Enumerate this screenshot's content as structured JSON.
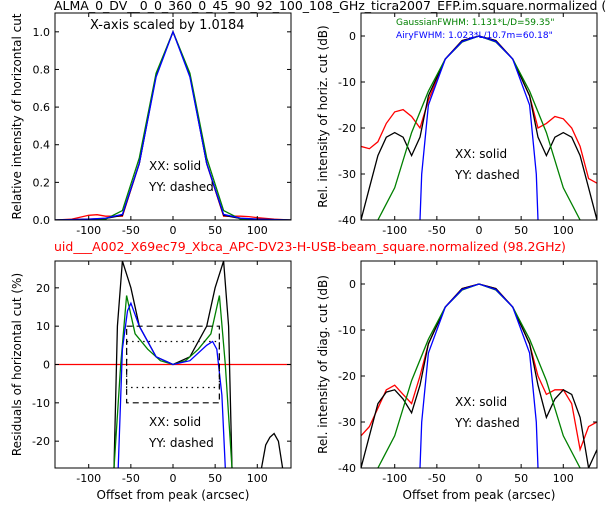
{
  "page": {
    "title_top": "ALMA_0_DV__0_0_360_0_45_90_92_100_108_GHz_ticra2007_EFP.im.square.normalized (",
    "title_mid": "uid___A002_X69ec79_Xbca_APC-DV23-H-USB-beam_square.normalized (98.2GHz)"
  },
  "colors": {
    "measured": "#ff0000",
    "model": "#000000",
    "gaussian": "#008000",
    "airy": "#0000ff"
  },
  "chart_data": [
    {
      "id": "p1",
      "type": "line",
      "ylabel": "Relative intensity of horizontal cut",
      "xlabel": "",
      "xlim": [
        -140,
        140
      ],
      "ylim": [
        0,
        1.1
      ],
      "xticks": [
        "-100",
        "-50",
        "0",
        "50",
        "100"
      ],
      "yticks": [
        "0.0",
        "0.2",
        "0.4",
        "0.6",
        "0.8",
        "1.0"
      ],
      "annotation": "X-axis scaled by 1.0184",
      "notes": [
        "XX: solid",
        "YY: dashed"
      ],
      "series": [
        {
          "color": "red",
          "style": "solid",
          "x": [
            -140,
            -120,
            -100,
            -90,
            -80,
            -60,
            -40,
            -20,
            0,
            20,
            40,
            60,
            80,
            90,
            100,
            120,
            140
          ],
          "y": [
            0,
            0.005,
            0.025,
            0.028,
            0.02,
            0.02,
            0.3,
            0.77,
            1.0,
            0.77,
            0.3,
            0.02,
            0.02,
            0.018,
            0.012,
            0.004,
            0
          ]
        },
        {
          "color": "black",
          "style": "solid",
          "x": [
            -140,
            -100,
            -80,
            -60,
            -40,
            -20,
            0,
            20,
            40,
            60,
            80,
            100,
            140
          ],
          "y": [
            0,
            0.005,
            0.008,
            0.025,
            0.3,
            0.77,
            1.0,
            0.77,
            0.3,
            0.025,
            0.008,
            0.005,
            0
          ]
        },
        {
          "color": "green",
          "style": "solid",
          "x": [
            -140,
            -100,
            -80,
            -60,
            -40,
            -20,
            0,
            20,
            40,
            60,
            80,
            100,
            140
          ],
          "y": [
            0,
            0.001,
            0.005,
            0.05,
            0.33,
            0.78,
            1.0,
            0.78,
            0.33,
            0.05,
            0.005,
            0.001,
            0
          ]
        },
        {
          "color": "blue",
          "style": "solid",
          "x": [
            -140,
            -100,
            -80,
            -60,
            -40,
            -20,
            0,
            20,
            40,
            60,
            80,
            100,
            140
          ],
          "y": [
            0,
            0.005,
            0.01,
            0.03,
            0.3,
            0.76,
            1.0,
            0.76,
            0.3,
            0.03,
            0.01,
            0.005,
            0
          ]
        }
      ]
    },
    {
      "id": "p2",
      "type": "line",
      "ylabel": "Rel. intensity of horiz. cut (dB)",
      "xlabel": "",
      "xlim": [
        -140,
        140
      ],
      "ylim": [
        -40,
        5
      ],
      "xticks": [
        "-100",
        "-50",
        "0",
        "50",
        "100"
      ],
      "yticks": [
        "-40",
        "-30",
        "-20",
        "-10",
        "0"
      ],
      "legend": [
        {
          "text": "GaussianFWHM: 1.131*L/D=59.35\"",
          "color": "green"
        },
        {
          "text": "AiryFWHM: 1.023*L/10.7m=60.18\"",
          "color": "blue"
        }
      ],
      "notes": [
        "XX: solid",
        "YY: dashed"
      ],
      "series": [
        {
          "color": "red",
          "style": "solid",
          "x": [
            -140,
            -130,
            -120,
            -110,
            -100,
            -90,
            -80,
            -70,
            -60,
            -40,
            -20,
            0,
            20,
            40,
            60,
            70,
            80,
            90,
            100,
            110,
            120,
            130,
            140
          ],
          "y": [
            -24,
            -24.5,
            -23,
            -19,
            -16.5,
            -16,
            -17.5,
            -20,
            -14,
            -5,
            -1,
            0,
            -1,
            -5,
            -13,
            -20,
            -19,
            -17.5,
            -18,
            -20,
            -24,
            -31,
            -32
          ]
        },
        {
          "color": "black",
          "style": "solid",
          "x": [
            -140,
            -130,
            -120,
            -110,
            -100,
            -90,
            -80,
            -70,
            -60,
            -40,
            -20,
            0,
            20,
            40,
            60,
            70,
            80,
            90,
            100,
            110,
            120,
            130,
            140
          ],
          "y": [
            -40,
            -33,
            -26,
            -22,
            -21,
            -22,
            -26,
            -22,
            -13,
            -5,
            -1,
            0,
            -1,
            -5,
            -13,
            -22,
            -26,
            -22,
            -21,
            -22,
            -26,
            -33,
            -40
          ]
        },
        {
          "color": "green",
          "style": "solid",
          "x": [
            -120,
            -100,
            -80,
            -60,
            -40,
            -20,
            0,
            20,
            40,
            60,
            80,
            100,
            120
          ],
          "y": [
            -40,
            -33,
            -21,
            -12,
            -5,
            -1.3,
            0,
            -1.3,
            -5,
            -12,
            -21,
            -33,
            -40
          ]
        },
        {
          "color": "blue",
          "style": "solid",
          "x": [
            -70,
            -68,
            -60,
            -40,
            -20,
            0,
            20,
            40,
            60,
            68,
            70
          ],
          "y": [
            -40,
            -30,
            -15,
            -5,
            -1.2,
            0,
            -1.2,
            -5,
            -15,
            -30,
            -40
          ]
        }
      ]
    },
    {
      "id": "p3",
      "type": "line",
      "ylabel": "Residuals of horizontal cut (%)",
      "xlabel": "Offset from peak (arcsec)",
      "xlim": [
        -140,
        140
      ],
      "ylim": [
        -27,
        27
      ],
      "xticks": [
        "-100",
        "-50",
        "0",
        "50",
        "100"
      ],
      "yticks": [
        "-20",
        "-10",
        "0",
        "10",
        "20"
      ],
      "notes": [
        "XX: solid",
        "YY: dashed"
      ],
      "series": [
        {
          "color": "red",
          "style": "solid",
          "x": [
            -140,
            140
          ],
          "y": [
            0,
            0
          ]
        },
        {
          "color": "black",
          "style": "solid",
          "x": [
            -70,
            -66,
            -60,
            -50,
            -40,
            -20,
            0,
            20,
            40,
            50,
            60,
            66,
            70
          ],
          "y": [
            -27,
            10,
            27,
            20,
            10,
            2,
            0,
            2,
            10,
            20,
            27,
            10,
            -27
          ]
        },
        {
          "color": "black",
          "style": "solid",
          "x": [
            105,
            110,
            115,
            120,
            125,
            130
          ],
          "y": [
            -27,
            -21,
            -19,
            -18,
            -20,
            -27
          ]
        },
        {
          "color": "green",
          "style": "solid",
          "x": [
            -70,
            -62,
            -55,
            -45,
            -30,
            -15,
            0,
            15,
            30,
            45,
            55,
            62,
            70
          ],
          "y": [
            -27,
            0,
            18,
            8,
            4,
            1,
            0,
            1,
            4,
            8,
            18,
            0,
            -27
          ]
        },
        {
          "color": "blue",
          "style": "solid",
          "x": [
            -65,
            -60,
            -54,
            -50,
            -40,
            -20,
            0,
            20,
            40,
            47,
            52,
            58,
            62
          ],
          "y": [
            -27,
            4,
            14,
            16,
            10,
            2,
            0,
            1,
            5,
            6,
            4,
            -8,
            -27
          ]
        }
      ]
    },
    {
      "id": "p4",
      "type": "line",
      "ylabel": "Rel. intensity of diag. cut (dB)",
      "xlabel": "Offset from peak (arcsec)",
      "xlim": [
        -140,
        140
      ],
      "ylim": [
        -40,
        5
      ],
      "xticks": [
        "-100",
        "-50",
        "0",
        "50",
        "100"
      ],
      "yticks": [
        "-40",
        "-30",
        "-20",
        "-10",
        "0"
      ],
      "notes": [
        "XX: solid",
        "YY: dashed"
      ],
      "series": [
        {
          "color": "red",
          "style": "solid",
          "x": [
            -140,
            -130,
            -120,
            -110,
            -100,
            -90,
            -80,
            -70,
            -60,
            -40,
            -20,
            0,
            20,
            40,
            60,
            70,
            80,
            90,
            100,
            110,
            120,
            130,
            140
          ],
          "y": [
            -33,
            -31,
            -27,
            -23,
            -22,
            -24,
            -26,
            -20,
            -13,
            -5,
            -1,
            0,
            -1,
            -5,
            -13,
            -20,
            -24,
            -23,
            -23,
            -26,
            -36,
            -31,
            -30
          ]
        },
        {
          "color": "black",
          "style": "solid",
          "x": [
            -140,
            -130,
            -120,
            -110,
            -100,
            -90,
            -80,
            -70,
            -60,
            -40,
            -20,
            0,
            20,
            40,
            60,
            70,
            80,
            90,
            100,
            110,
            120,
            130,
            140
          ],
          "y": [
            -40,
            -33,
            -26,
            -23.5,
            -23,
            -25,
            -28,
            -22,
            -13,
            -5,
            -1,
            0,
            -1,
            -5,
            -13,
            -22,
            -29,
            -25,
            -23,
            -24,
            -29,
            -40,
            -36
          ]
        },
        {
          "color": "green",
          "style": "solid",
          "x": [
            -120,
            -100,
            -80,
            -60,
            -40,
            -20,
            0,
            20,
            40,
            60,
            80,
            100,
            120
          ],
          "y": [
            -40,
            -33,
            -21,
            -12,
            -5,
            -1.3,
            0,
            -1.3,
            -5,
            -12,
            -21,
            -33,
            -40
          ]
        },
        {
          "color": "blue",
          "style": "solid",
          "x": [
            -70,
            -68,
            -60,
            -40,
            -20,
            0,
            20,
            40,
            60,
            68,
            70
          ],
          "y": [
            -40,
            -30,
            -15,
            -5,
            -1.2,
            0,
            -1.2,
            -5,
            -15,
            -30,
            -40
          ]
        }
      ]
    }
  ]
}
